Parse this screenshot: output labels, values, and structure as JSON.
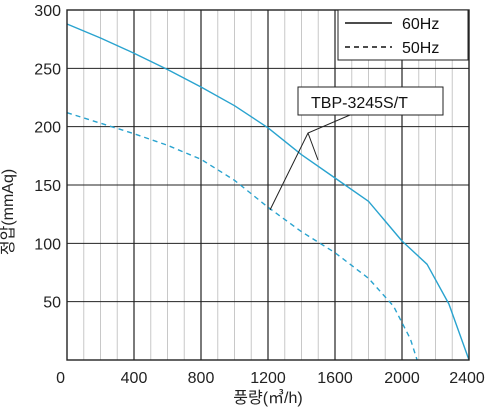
{
  "chart_data": {
    "type": "line",
    "xlabel": "풍량(㎥/h)",
    "ylabel": "정압(mmAq)",
    "xlim": [
      0,
      2400
    ],
    "ylim": [
      0,
      300
    ],
    "x_ticks": [
      "0",
      "400",
      "800",
      "1200",
      "1600",
      "2000",
      "2400"
    ],
    "y_ticks": [
      "0",
      "50",
      "100",
      "150",
      "200",
      "250",
      "300"
    ],
    "grid": true,
    "legend": "top-right",
    "annotation": "TBP-3245S/T",
    "colors": {
      "curve": "#29a3cf",
      "grid": "#c8c8c8",
      "frame": "#222222"
    },
    "series": [
      {
        "name": "60Hz",
        "style": "solid",
        "x": [
          0,
          200,
          400,
          600,
          800,
          1000,
          1200,
          1400,
          1600,
          1800,
          2000,
          2150,
          2280,
          2400
        ],
        "y": [
          288,
          276,
          263,
          249,
          234,
          218,
          199,
          176,
          156,
          136,
          102,
          82,
          48,
          0
        ]
      },
      {
        "name": "50Hz",
        "style": "dashed",
        "x": [
          0,
          200,
          400,
          600,
          800,
          1000,
          1200,
          1400,
          1600,
          1800,
          1950,
          2050,
          2090
        ],
        "y": [
          212,
          203,
          194,
          184,
          172,
          154,
          131,
          110,
          92,
          70,
          46,
          18,
          0
        ]
      }
    ]
  }
}
